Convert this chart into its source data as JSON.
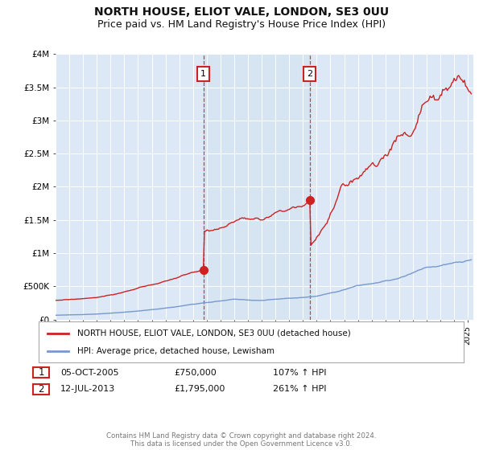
{
  "title": "NORTH HOUSE, ELIOT VALE, LONDON, SE3 0UU",
  "subtitle": "Price paid vs. HM Land Registry's House Price Index (HPI)",
  "title_fontsize": 10,
  "subtitle_fontsize": 9,
  "background_color": "#ffffff",
  "plot_bg_color": "#dce8f5",
  "grid_color": "#ffffff",
  "red_line_color": "#cc2222",
  "blue_line_color": "#7799cc",
  "dashed_line_color": "#cc2222",
  "idx1": 129,
  "idx2": 222,
  "marker1_value": 750000,
  "marker2_value": 1795000,
  "legend_label1": "NORTH HOUSE, ELIOT VALE, LONDON, SE3 0UU (detached house)",
  "legend_label2": "HPI: Average price, detached house, Lewisham",
  "footer": "Contains HM Land Registry data © Crown copyright and database right 2024.\nThis data is licensed under the Open Government Licence v3.0.",
  "ylim": [
    0,
    4000000
  ],
  "yticks": [
    0,
    500000,
    1000000,
    1500000,
    2000000,
    2500000,
    3000000,
    3500000,
    4000000
  ],
  "ytick_labels": [
    "£0",
    "£500K",
    "£1M",
    "£1.5M",
    "£2M",
    "£2.5M",
    "£3M",
    "£3.5M",
    "£4M"
  ]
}
